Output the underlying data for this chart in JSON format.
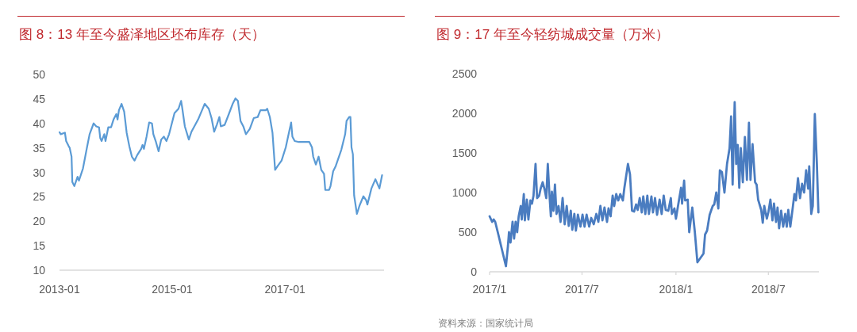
{
  "chart_data": [
    {
      "type": "line",
      "title": "图 8：13 年至今盛泽地区坯布库存（天）",
      "color": "#5b9bd5",
      "xlim": [
        "2013-01-01",
        "2018-10-05"
      ],
      "ylim": [
        10,
        50
      ],
      "xticks": [
        {
          "value": "2013-01-01",
          "label": "2013-01"
        },
        {
          "value": "2015-01-01",
          "label": "2015-01"
        },
        {
          "value": "2017-01-01",
          "label": "2017-01"
        }
      ],
      "yticks": [
        10,
        15,
        20,
        25,
        30,
        35,
        40,
        45,
        50
      ],
      "x": [
        "2013-01-01",
        "2013-01-09",
        "2013-02-05",
        "2013-02-13",
        "2013-03-01",
        "2013-03-08",
        "2013-03-20",
        "2013-03-25",
        "2013-04-07",
        "2013-04-28",
        "2013-05-07",
        "2013-06-02",
        "2013-06-28",
        "2013-07-15",
        "2013-08-10",
        "2013-08-27",
        "2013-09-14",
        "2013-09-22",
        "2013-10-01",
        "2013-10-18",
        "2013-10-26",
        "2013-11-13",
        "2013-12-01",
        "2013-12-17",
        "2014-01-04",
        "2014-01-12",
        "2014-01-21",
        "2014-02-07",
        "2014-02-24",
        "2014-03-12",
        "2014-03-29",
        "2014-04-15",
        "2014-05-02",
        "2014-05-19",
        "2014-06-14",
        "2014-06-23",
        "2014-07-02",
        "2014-07-19",
        "2014-08-05",
        "2014-08-23",
        "2014-09-01",
        "2014-09-18",
        "2014-10-05",
        "2014-10-22",
        "2014-11-08",
        "2014-11-25",
        "2014-12-12",
        "2015-01-16",
        "2015-02-11",
        "2015-02-28",
        "2015-03-07",
        "2015-03-24",
        "2015-04-19",
        "2015-05-06",
        "2015-06-18",
        "2015-07-31",
        "2015-08-26",
        "2015-09-13",
        "2015-09-30",
        "2015-10-17",
        "2015-11-03",
        "2015-11-12",
        "2015-12-07",
        "2016-01-03",
        "2016-01-28",
        "2016-02-15",
        "2016-03-02",
        "2016-03-19",
        "2016-04-06",
        "2016-04-23",
        "2016-05-18",
        "2016-06-13",
        "2016-07-08",
        "2016-07-26",
        "2016-08-29",
        "2016-09-08",
        "2016-09-25",
        "2016-10-12",
        "2016-10-29",
        "2016-11-15",
        "2016-12-10",
        "2017-01-06",
        "2017-02-01",
        "2017-02-10",
        "2017-02-18",
        "2017-03-05",
        "2017-04-01",
        "2017-05-04",
        "2017-06-08",
        "2017-06-25",
        "2017-07-03",
        "2017-07-20",
        "2017-08-07",
        "2017-08-24",
        "2017-09-11",
        "2017-09-19",
        "2017-10-14",
        "2017-10-23",
        "2017-11-09",
        "2017-11-26",
        "2018-01-01",
        "2018-01-26",
        "2018-02-04",
        "2018-02-21",
        "2018-03-01",
        "2018-03-08",
        "2018-03-17",
        "2018-03-25",
        "2018-04-12",
        "2018-04-29",
        "2018-05-24",
        "2018-06-11",
        "2018-06-19",
        "2018-07-15",
        "2018-08-10",
        "2018-09-05",
        "2018-09-22"
      ],
      "values": [
        38.2,
        37.8,
        38.1,
        36.4,
        35.4,
        35.0,
        33.2,
        28.0,
        27.2,
        29.1,
        28.3,
        30.8,
        35.1,
        37.8,
        40.0,
        39.4,
        39.2,
        37.0,
        36.4,
        37.8,
        36.4,
        39.2,
        39.2,
        40.8,
        41.9,
        40.8,
        42.7,
        44.0,
        42.4,
        38.1,
        35.4,
        33.2,
        32.4,
        33.5,
        34.8,
        35.6,
        34.8,
        37.3,
        40.2,
        40.0,
        37.8,
        36.2,
        34.3,
        36.7,
        37.3,
        36.4,
        37.8,
        42.1,
        43.0,
        44.6,
        43.2,
        39.4,
        36.7,
        38.3,
        40.8,
        44.0,
        43.0,
        41.1,
        38.3,
        39.7,
        41.3,
        39.4,
        39.7,
        41.9,
        44.0,
        45.1,
        44.6,
        40.5,
        39.4,
        37.8,
        38.9,
        41.1,
        41.3,
        42.7,
        42.7,
        43.0,
        41.3,
        38.1,
        30.5,
        31.3,
        32.4,
        35.1,
        38.9,
        40.2,
        37.3,
        36.4,
        36.2,
        36.2,
        36.2,
        35.1,
        33.2,
        31.6,
        33.2,
        30.5,
        29.7,
        26.4,
        26.4,
        27.2,
        30.2,
        31.3,
        34.6,
        37.8,
        40.5,
        41.3,
        41.3,
        35.1,
        33.7,
        25.3,
        21.5,
        23.2,
        25.1,
        24.3,
        23.4,
        26.7,
        28.6,
        26.7,
        29.4
      ]
    },
    {
      "type": "line",
      "title": "图 9：17 年至今轻纺城成交量（万米）",
      "color": "#4a7cc0",
      "xlim": [
        "2017-01-01",
        "2018-10-08"
      ],
      "ylim": [
        0,
        2500
      ],
      "xticks": [
        {
          "value": "2017-01-01",
          "label": "2017/1"
        },
        {
          "value": "2017-07-01",
          "label": "2017/7"
        },
        {
          "value": "2018-01-01",
          "label": "2018/1"
        },
        {
          "value": "2018-07-01",
          "label": "2018/7"
        }
      ],
      "yticks": [
        0,
        500,
        1000,
        1500,
        2000,
        2500
      ],
      "annotations": [
        "资料来源：国家统计局"
      ],
      "x": [
        "2017-01-01",
        "2017-01-06",
        "2017-01-09",
        "2017-01-12",
        "2017-01-17",
        "2017-02-02",
        "2017-02-06",
        "2017-02-08",
        "2017-02-11",
        "2017-02-15",
        "2017-02-18",
        "2017-02-21",
        "2017-02-24",
        "2017-02-27",
        "2017-03-03",
        "2017-03-05",
        "2017-03-09",
        "2017-03-11",
        "2017-03-15",
        "2017-03-18",
        "2017-03-22",
        "2017-03-25",
        "2017-03-28",
        "2017-04-01",
        "2017-04-04",
        "2017-04-08",
        "2017-04-11",
        "2017-04-15",
        "2017-04-19",
        "2017-04-22",
        "2017-04-25",
        "2017-04-28",
        "2017-05-01",
        "2017-05-03",
        "2017-05-06",
        "2017-05-09",
        "2017-05-12",
        "2017-05-16",
        "2017-05-20",
        "2017-05-24",
        "2017-05-28",
        "2017-06-01",
        "2017-06-05",
        "2017-06-09",
        "2017-06-12",
        "2017-06-16",
        "2017-06-19",
        "2017-06-23",
        "2017-06-28",
        "2017-07-02",
        "2017-07-06",
        "2017-07-10",
        "2017-07-15",
        "2017-07-19",
        "2017-07-24",
        "2017-07-29",
        "2017-08-02",
        "2017-08-06",
        "2017-08-10",
        "2017-08-14",
        "2017-08-19",
        "2017-08-22",
        "2017-08-26",
        "2017-08-30",
        "2017-09-02",
        "2017-09-06",
        "2017-09-10",
        "2017-09-14",
        "2017-09-19",
        "2017-09-22",
        "2017-09-29",
        "2017-10-03",
        "2017-10-07",
        "2017-10-11",
        "2017-10-15",
        "2017-10-18",
        "2017-10-22",
        "2017-10-26",
        "2017-10-29",
        "2017-11-02",
        "2017-11-06",
        "2017-11-09",
        "2017-11-14",
        "2017-11-17",
        "2017-11-21",
        "2017-11-25",
        "2017-11-30",
        "2017-12-04",
        "2017-12-08",
        "2017-12-12",
        "2017-12-17",
        "2017-12-22",
        "2017-12-24",
        "2017-12-29",
        "2018-01-01",
        "2018-01-05",
        "2018-01-11",
        "2018-01-13",
        "2018-01-17",
        "2018-01-19",
        "2018-01-24",
        "2018-01-27",
        "2018-02-02",
        "2018-02-07",
        "2018-02-12",
        "2018-02-24",
        "2018-02-27",
        "2018-03-03",
        "2018-03-08",
        "2018-03-14",
        "2018-03-17",
        "2018-03-21",
        "2018-03-25",
        "2018-03-28",
        "2018-04-01",
        "2018-04-06",
        "2018-04-11",
        "2018-04-16",
        "2018-04-19",
        "2018-04-22",
        "2018-04-26",
        "2018-04-29",
        "2018-05-02",
        "2018-05-05",
        "2018-05-08",
        "2018-05-12",
        "2018-05-16",
        "2018-05-20",
        "2018-05-24",
        "2018-05-27",
        "2018-05-31",
        "2018-06-05",
        "2018-06-08",
        "2018-06-11",
        "2018-06-17",
        "2018-06-20",
        "2018-06-23",
        "2018-06-28",
        "2018-07-01",
        "2018-07-05",
        "2018-07-09",
        "2018-07-12",
        "2018-07-16",
        "2018-07-19",
        "2018-07-22",
        "2018-07-26",
        "2018-07-30",
        "2018-08-03",
        "2018-08-06",
        "2018-08-09",
        "2018-08-13",
        "2018-08-17",
        "2018-08-21",
        "2018-08-24",
        "2018-08-28",
        "2018-09-01",
        "2018-09-05",
        "2018-09-09",
        "2018-09-13",
        "2018-09-17",
        "2018-09-19",
        "2018-09-23",
        "2018-09-26",
        "2018-09-30",
        "2018-10-04",
        "2018-10-07"
      ],
      "values": [
        700,
        630,
        660,
        630,
        500,
        70,
        330,
        500,
        370,
        630,
        420,
        630,
        500,
        700,
        830,
        660,
        980,
        650,
        910,
        660,
        900,
        860,
        960,
        1360,
        930,
        960,
        1050,
        1130,
        1030,
        930,
        1360,
        1000,
        700,
        1010,
        770,
        1100,
        730,
        830,
        630,
        930,
        600,
        830,
        580,
        770,
        530,
        730,
        520,
        720,
        570,
        720,
        570,
        720,
        570,
        680,
        600,
        730,
        630,
        830,
        650,
        810,
        630,
        800,
        700,
        960,
        830,
        980,
        900,
        980,
        900,
        1060,
        1360,
        1230,
        770,
        760,
        850,
        780,
        930,
        750,
        950,
        730,
        960,
        730,
        950,
        750,
        930,
        720,
        910,
        730,
        960,
        780,
        770,
        930,
        730,
        800,
        670,
        830,
        1060,
        860,
        1150,
        900,
        910,
        500,
        810,
        500,
        120,
        230,
        470,
        520,
        720,
        830,
        850,
        1000,
        800,
        1280,
        1260,
        1000,
        1360,
        1560,
        1960,
        1100,
        2140,
        1360,
        1600,
        1060,
        1560,
        1130,
        1700,
        1160,
        1880,
        1160,
        1610,
        1130,
        1100,
        910,
        780,
        620,
        830,
        670,
        750,
        910,
        650,
        860,
        630,
        810,
        550,
        770,
        570,
        730,
        570,
        780,
        570,
        770,
        980,
        900,
        1180,
        930,
        1110,
        1000,
        1280,
        1050,
        1330,
        730,
        830,
        1990,
        1360,
        750
      ]
    }
  ]
}
